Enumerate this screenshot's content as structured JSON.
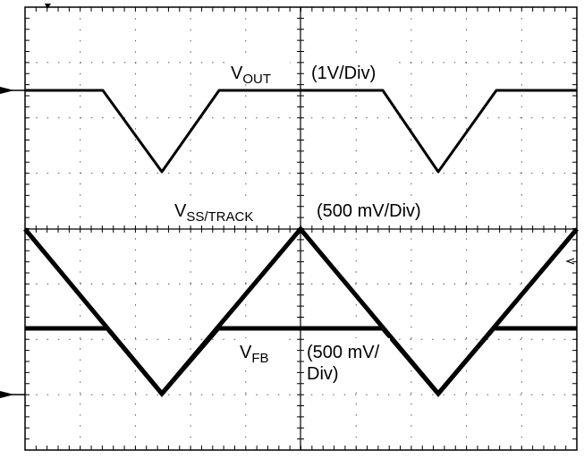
{
  "labels": {
    "vout": {
      "symbol": "V",
      "subscript": "OUT",
      "scale": "(1V/Div)"
    },
    "vss": {
      "symbol": "V",
      "subscript": "SS/TRACK",
      "scale": "(500 mV/Div)"
    },
    "vfb": {
      "symbol": "V",
      "subscript": "FB",
      "scale_line1": "(500 mV/",
      "scale_line2": "Div)"
    }
  }
}
